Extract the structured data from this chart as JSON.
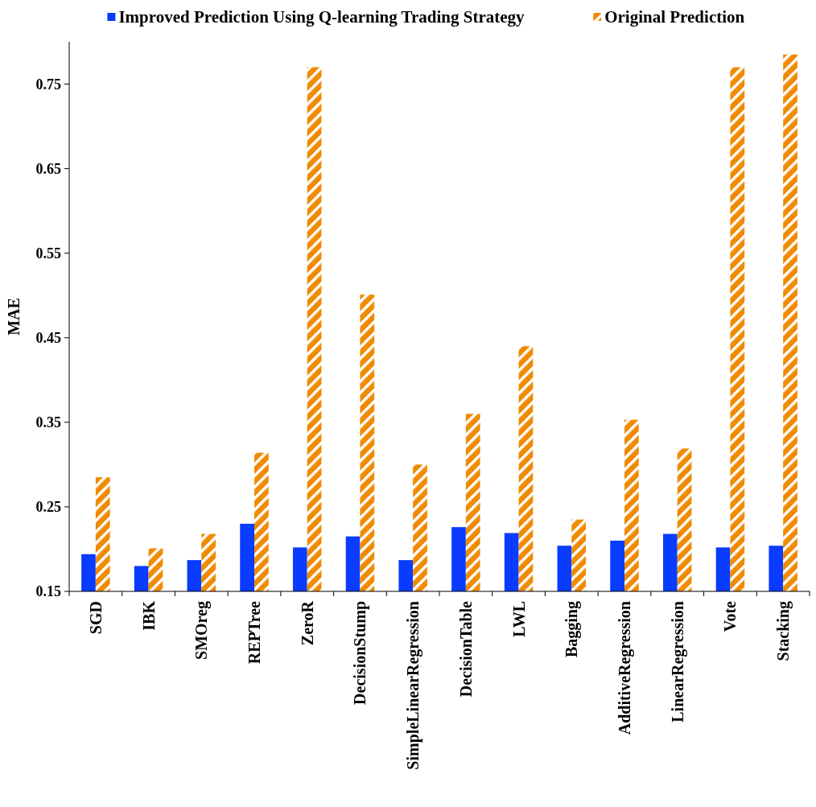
{
  "chart_data": {
    "type": "bar",
    "ylabel": "MAE",
    "categories": [
      "SGD",
      "IBK",
      "SMOreg",
      "REPTree",
      "ZeroR",
      "DecisionStump",
      "SimpleLinearRegression",
      "DecisionTable",
      "LWL",
      "Bagging",
      "AdditiveRegression",
      "LinearRegression",
      "Vote",
      "Stacking"
    ],
    "series": [
      {
        "name": "Improved Prediction Using Q-learning Trading Strategy",
        "color": "#0a3cff",
        "values": [
          0.194,
          0.18,
          0.187,
          0.23,
          0.202,
          0.215,
          0.187,
          0.226,
          0.219,
          0.204,
          0.21,
          0.218,
          0.202,
          0.204
        ]
      },
      {
        "name": "Original Prediction",
        "color": "#f08a00",
        "values": [
          0.285,
          0.201,
          0.218,
          0.314,
          0.77,
          0.501,
          0.3,
          0.36,
          0.44,
          0.235,
          0.353,
          0.319,
          0.77,
          0.785
        ]
      }
    ],
    "ylim": [
      0.15,
      0.8
    ],
    "yticks": [
      0.15,
      0.25,
      0.35,
      0.45,
      0.55,
      0.65,
      0.75
    ],
    "grid": false,
    "legend": "top"
  }
}
